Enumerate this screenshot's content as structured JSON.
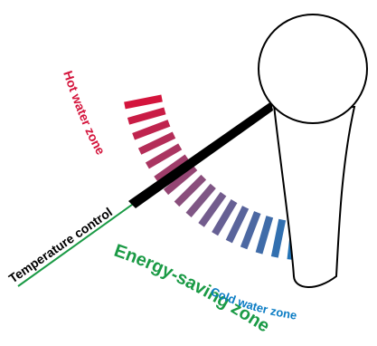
{
  "labels": {
    "hot_zone": "Hot water zone",
    "temperature_control": "Temperature control",
    "energy_saving_zone": "Energy-saving zone",
    "cold_zone": "Cold water zone"
  },
  "colors": {
    "hot": "#d4143c",
    "mid": "#7a5a8a",
    "cold": "#0a7cc4",
    "energy": "#1a9a45",
    "lever": "#000000",
    "outline": "#000000"
  },
  "scale": {
    "bar_count": 18,
    "bands": [
      "hot",
      "energy-saving",
      "cold"
    ]
  }
}
